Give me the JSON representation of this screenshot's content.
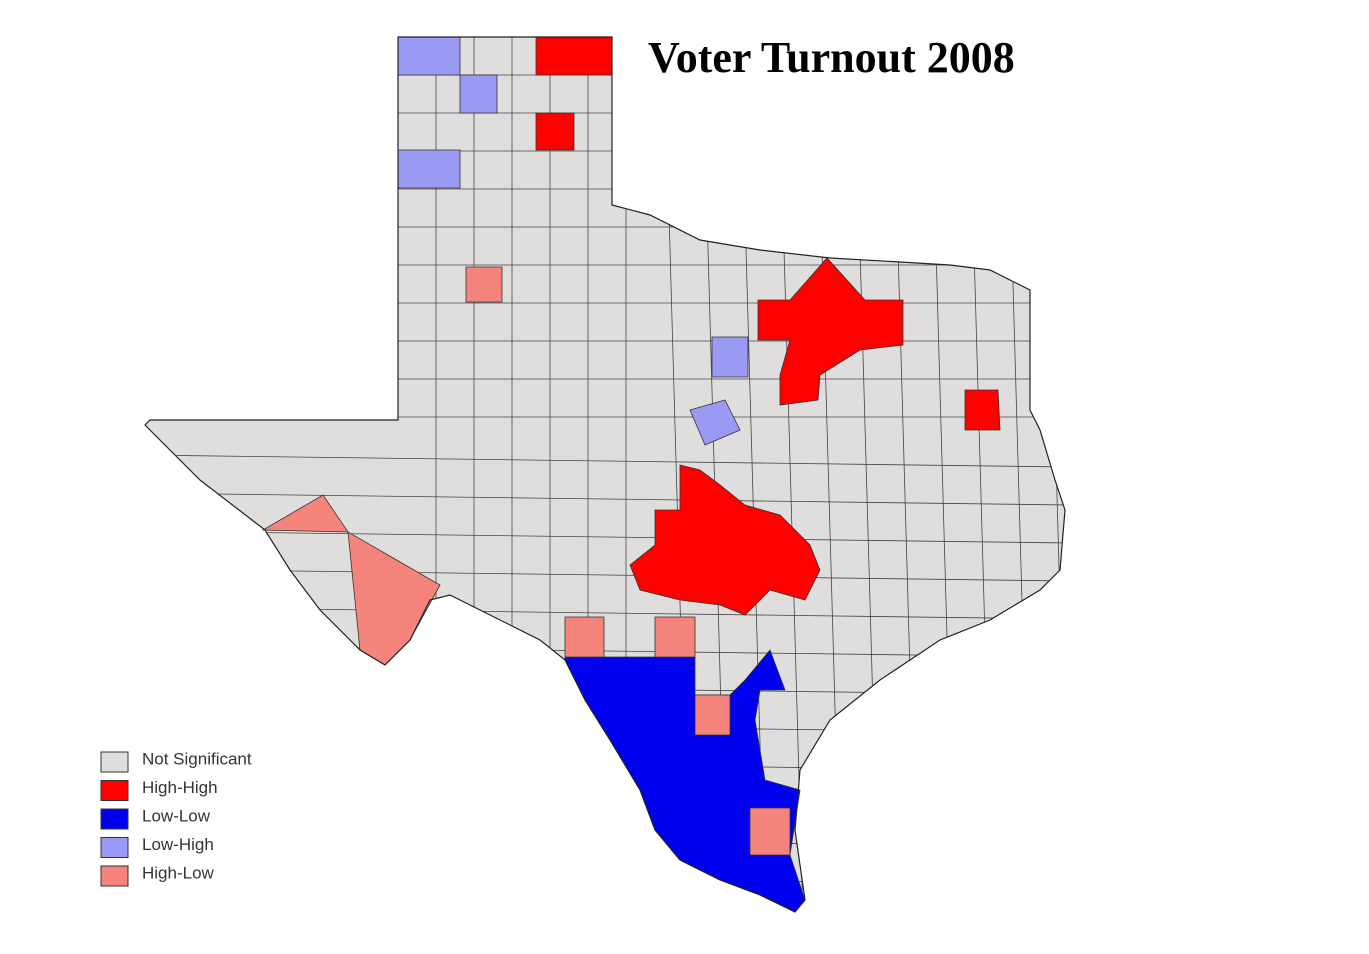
{
  "title": "Voter Turnout 2008",
  "legend": [
    {
      "label": "Not Significant",
      "color": "#e0dedd"
    },
    {
      "label": "High-High",
      "color": "#ff0000"
    },
    {
      "label": "Low-Low",
      "color": "#0000f0"
    },
    {
      "label": "Low-High",
      "color": "#9a9af5"
    },
    {
      "label": "High-Low",
      "color": "#f5857c"
    }
  ]
}
